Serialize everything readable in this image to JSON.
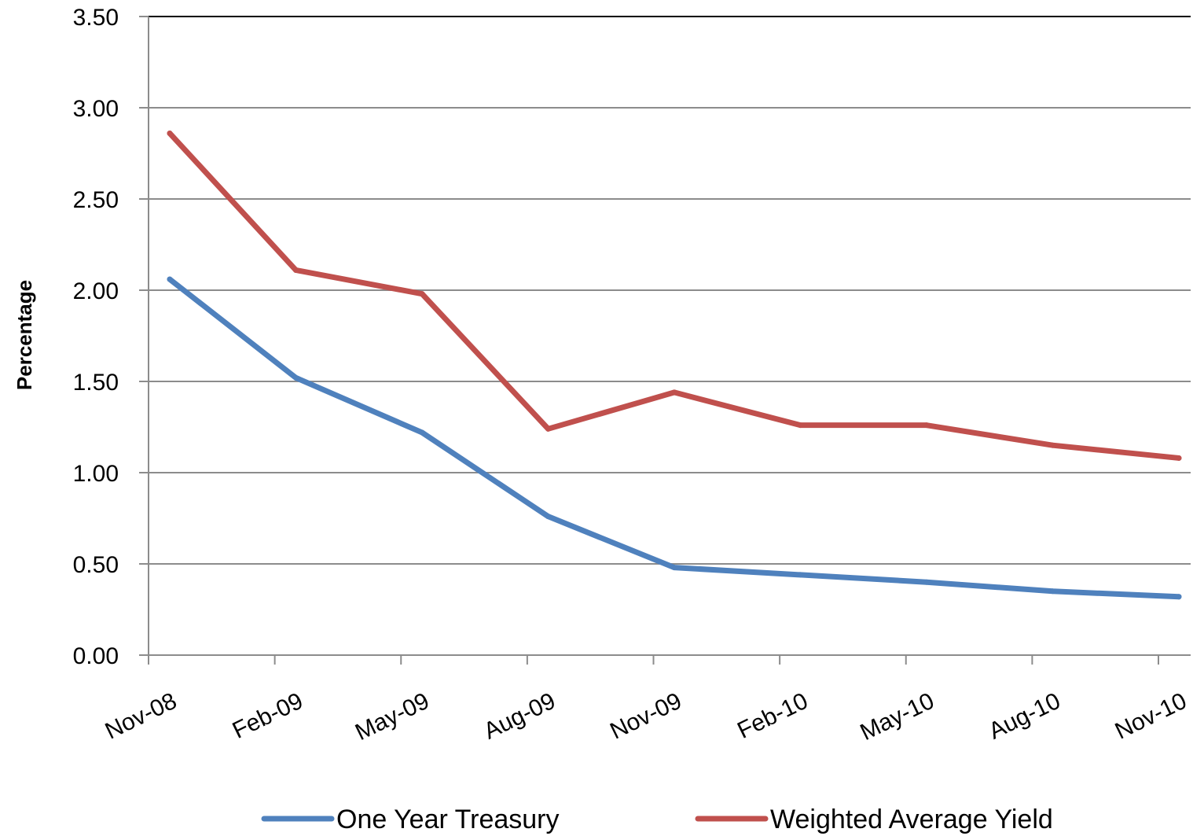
{
  "chart_data": {
    "type": "line",
    "title": "",
    "xlabel": "",
    "ylabel": "Percentage",
    "ylim": [
      0,
      3.5
    ],
    "yticks": [
      "0.00",
      "0.50",
      "1.00",
      "1.50",
      "2.00",
      "2.50",
      "3.00",
      "3.50"
    ],
    "categories": [
      "Nov-08",
      "Feb-09",
      "May-09",
      "Aug-09",
      "Nov-09",
      "Feb-10",
      "May-10",
      "Aug-10",
      "Nov-10"
    ],
    "grid": true,
    "legend_position": "bottom",
    "series": [
      {
        "name": "One Year Treasury",
        "color": "#4F81BD",
        "values": [
          2.06,
          1.52,
          1.22,
          0.76,
          0.48,
          0.44,
          0.4,
          0.35,
          0.32
        ]
      },
      {
        "name": "Weighted Average Yield",
        "color": "#C0504D",
        "values": [
          2.86,
          2.11,
          1.98,
          1.24,
          1.44,
          1.26,
          1.26,
          1.15,
          1.08
        ]
      }
    ]
  }
}
